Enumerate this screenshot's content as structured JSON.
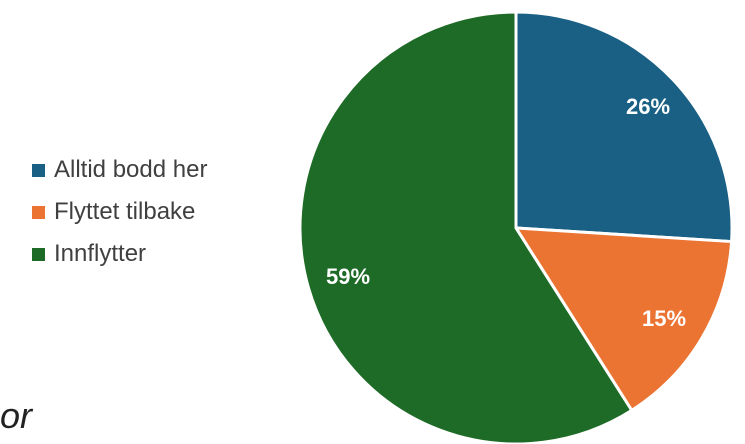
{
  "chart_data": {
    "type": "pie",
    "categories": [
      "Alltid bodd her",
      "Flyttet tilbake",
      "Innflytter"
    ],
    "values": [
      26,
      15,
      59
    ],
    "data_labels": [
      "26%",
      "15%",
      "59%"
    ],
    "colors": [
      "#1a5f84",
      "#ec7432",
      "#1e6b27"
    ],
    "legend_position": "left",
    "start_angle": "12 o'clock, clockwise"
  },
  "legend": {
    "items": [
      {
        "label": "Alltid bodd her",
        "color": "#1a5f84"
      },
      {
        "label": "Flyttet tilbake",
        "color": "#ec7432"
      },
      {
        "label": "Innflytter",
        "color": "#1e6b27"
      }
    ]
  },
  "fragment_text": "or"
}
